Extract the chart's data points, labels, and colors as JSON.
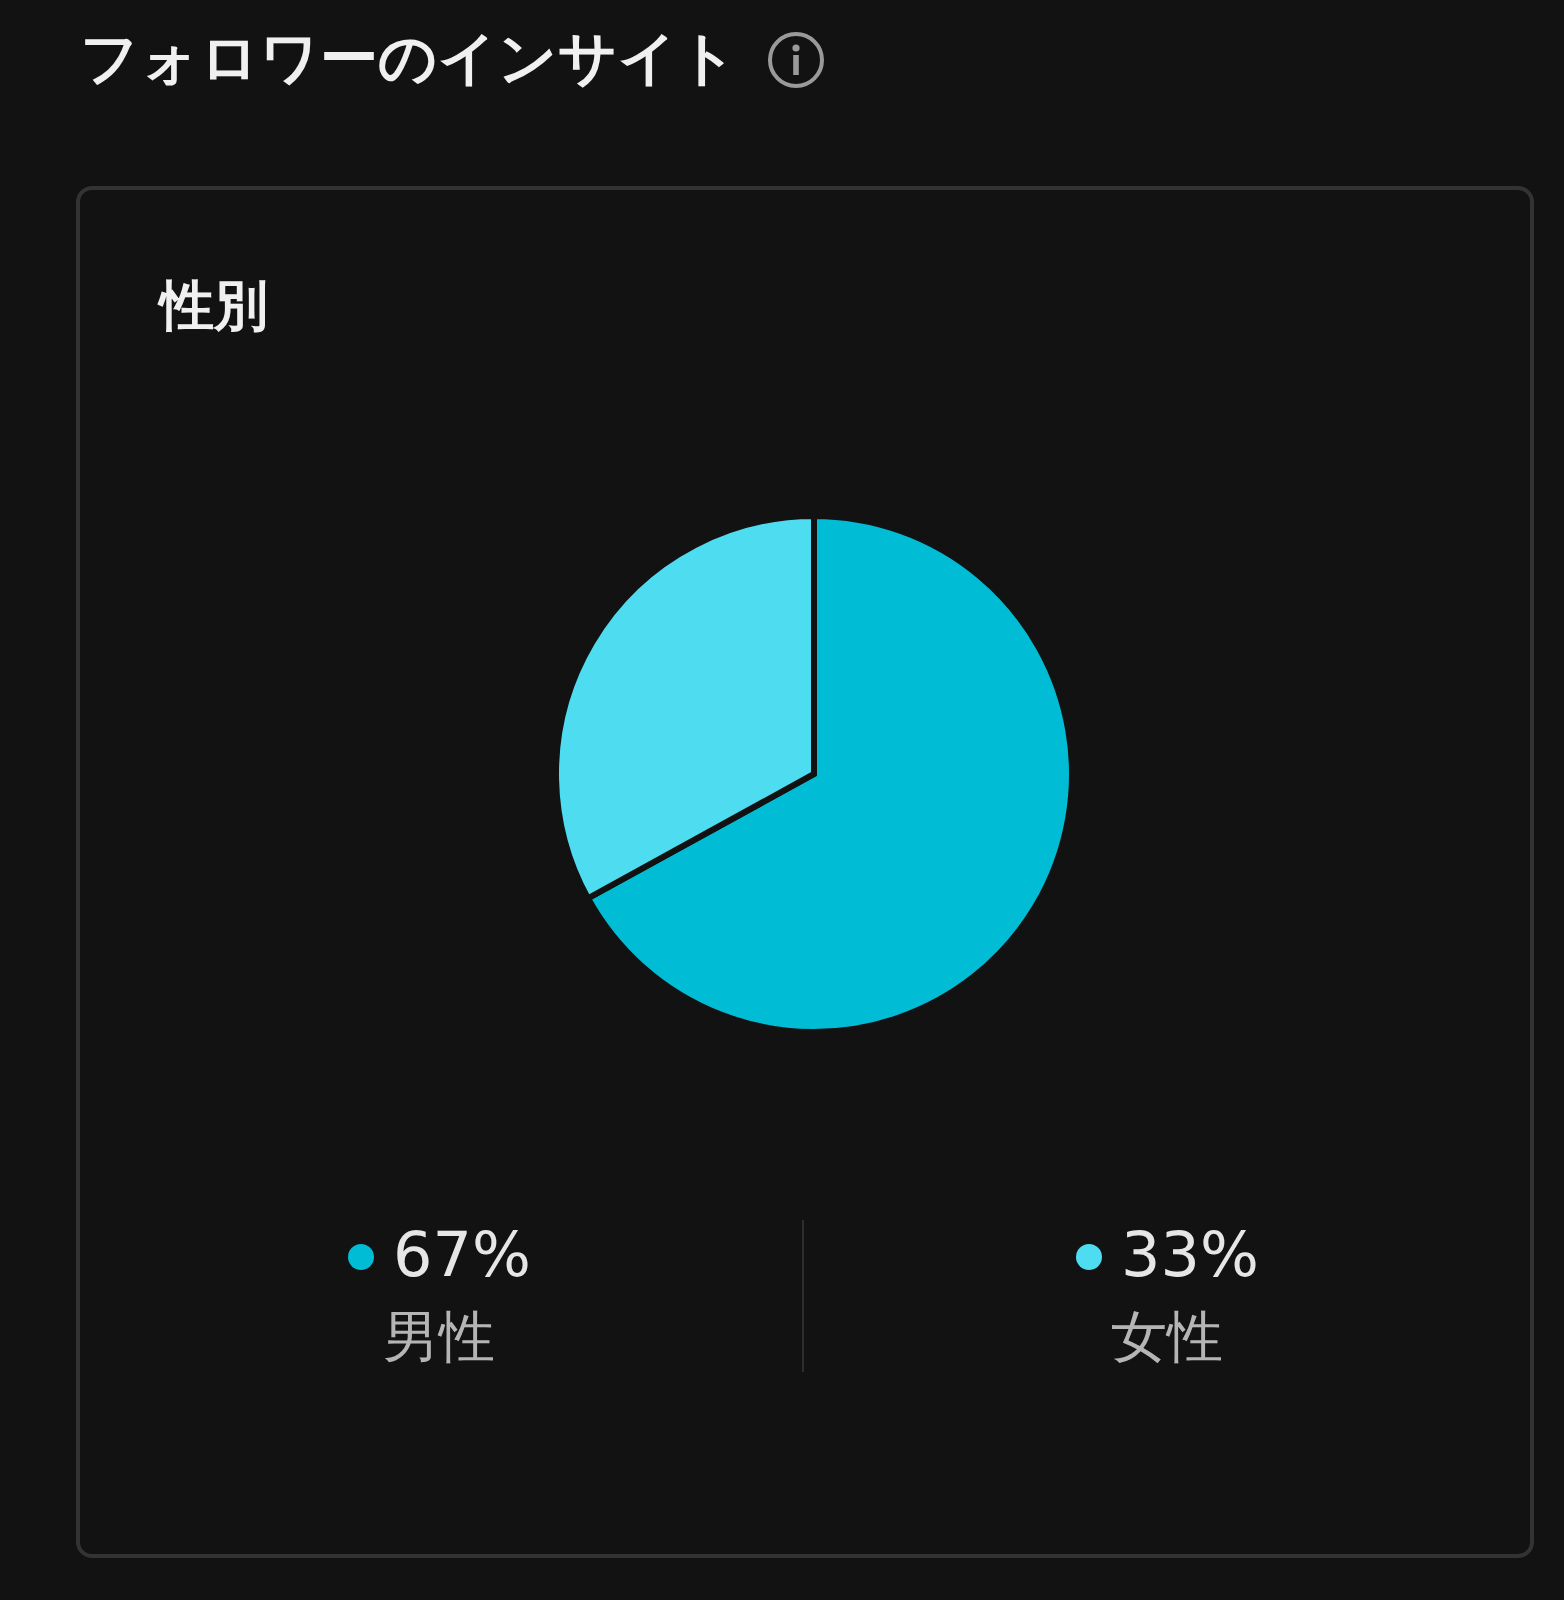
{
  "chart_data": {
    "type": "pie",
    "title": "フォロワーのインサイト",
    "subtitle": "性別",
    "categories": [
      "男性",
      "女性"
    ],
    "values": [
      67,
      33
    ],
    "colors": [
      "#00bcd4",
      "#4ddcf0"
    ],
    "value_labels": [
      "67%",
      "33%"
    ],
    "legend": "bottom"
  }
}
